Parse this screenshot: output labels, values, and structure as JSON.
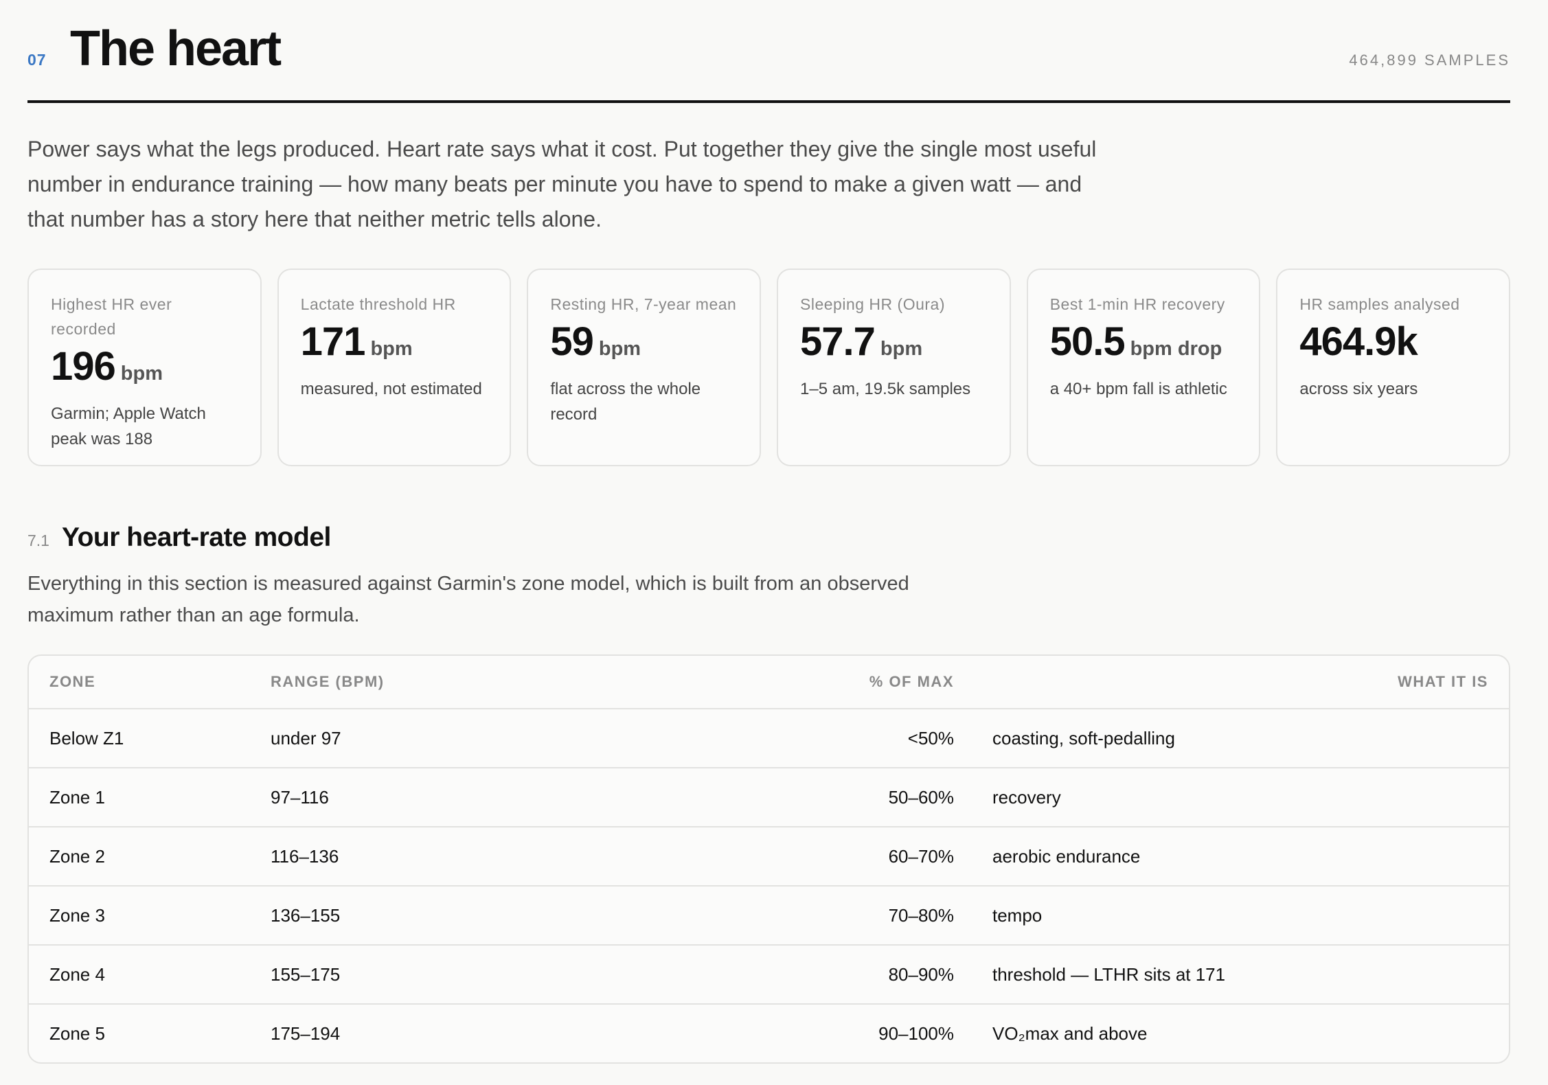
{
  "header": {
    "number": "07",
    "title": "The heart",
    "samples": "464,899 SAMPLES"
  },
  "intro": "Power says what the legs produced. Heart rate says what it cost. Put together they give the single most useful number in endurance training — how many beats per minute you have to spend to make a given watt — and that number has a story here that neither metric tells alone.",
  "cards": [
    {
      "label": "Highest HR ever recorded",
      "value": "196",
      "unit": "bpm",
      "note": "Garmin; Apple Watch peak was 188"
    },
    {
      "label": "Lactate threshold HR",
      "value": "171",
      "unit": "bpm",
      "note": "measured, not estimated"
    },
    {
      "label": "Resting HR, 7-year mean",
      "value": "59",
      "unit": "bpm",
      "note": "flat across the whole record"
    },
    {
      "label": "Sleeping HR (Oura)",
      "value": "57.7",
      "unit": "bpm",
      "note": "1–5 am, 19.5k samples"
    },
    {
      "label": "Best 1-min HR recovery",
      "value": "50.5",
      "unit": "bpm drop",
      "note": "a 40+ bpm fall is athletic"
    },
    {
      "label": "HR samples analysed",
      "value": "464.9k",
      "note": "across six years"
    }
  ],
  "section": {
    "number": "7.1",
    "title": "Your heart-rate model",
    "text": "Everything in this section is measured against Garmin's zone model, which is built from an observed maximum rather than an age formula."
  },
  "table": {
    "columns": [
      "ZONE",
      "RANGE (BPM)",
      "% OF MAX",
      "WHAT IT IS"
    ],
    "rows": [
      [
        "Below Z1",
        "under 97",
        "<50%",
        "coasting, soft-pedalling"
      ],
      [
        "Zone 1",
        "97–116",
        "50–60%",
        "recovery"
      ],
      [
        "Zone 2",
        "116–136",
        "60–70%",
        "aerobic endurance"
      ],
      [
        "Zone 3",
        "136–155",
        "70–80%",
        "tempo"
      ],
      [
        "Zone 4",
        "155–175",
        "80–90%",
        "threshold — LTHR sits at 171"
      ],
      [
        "Zone 5",
        "175–194",
        "90–100%",
        "VO₂max and above"
      ]
    ]
  }
}
